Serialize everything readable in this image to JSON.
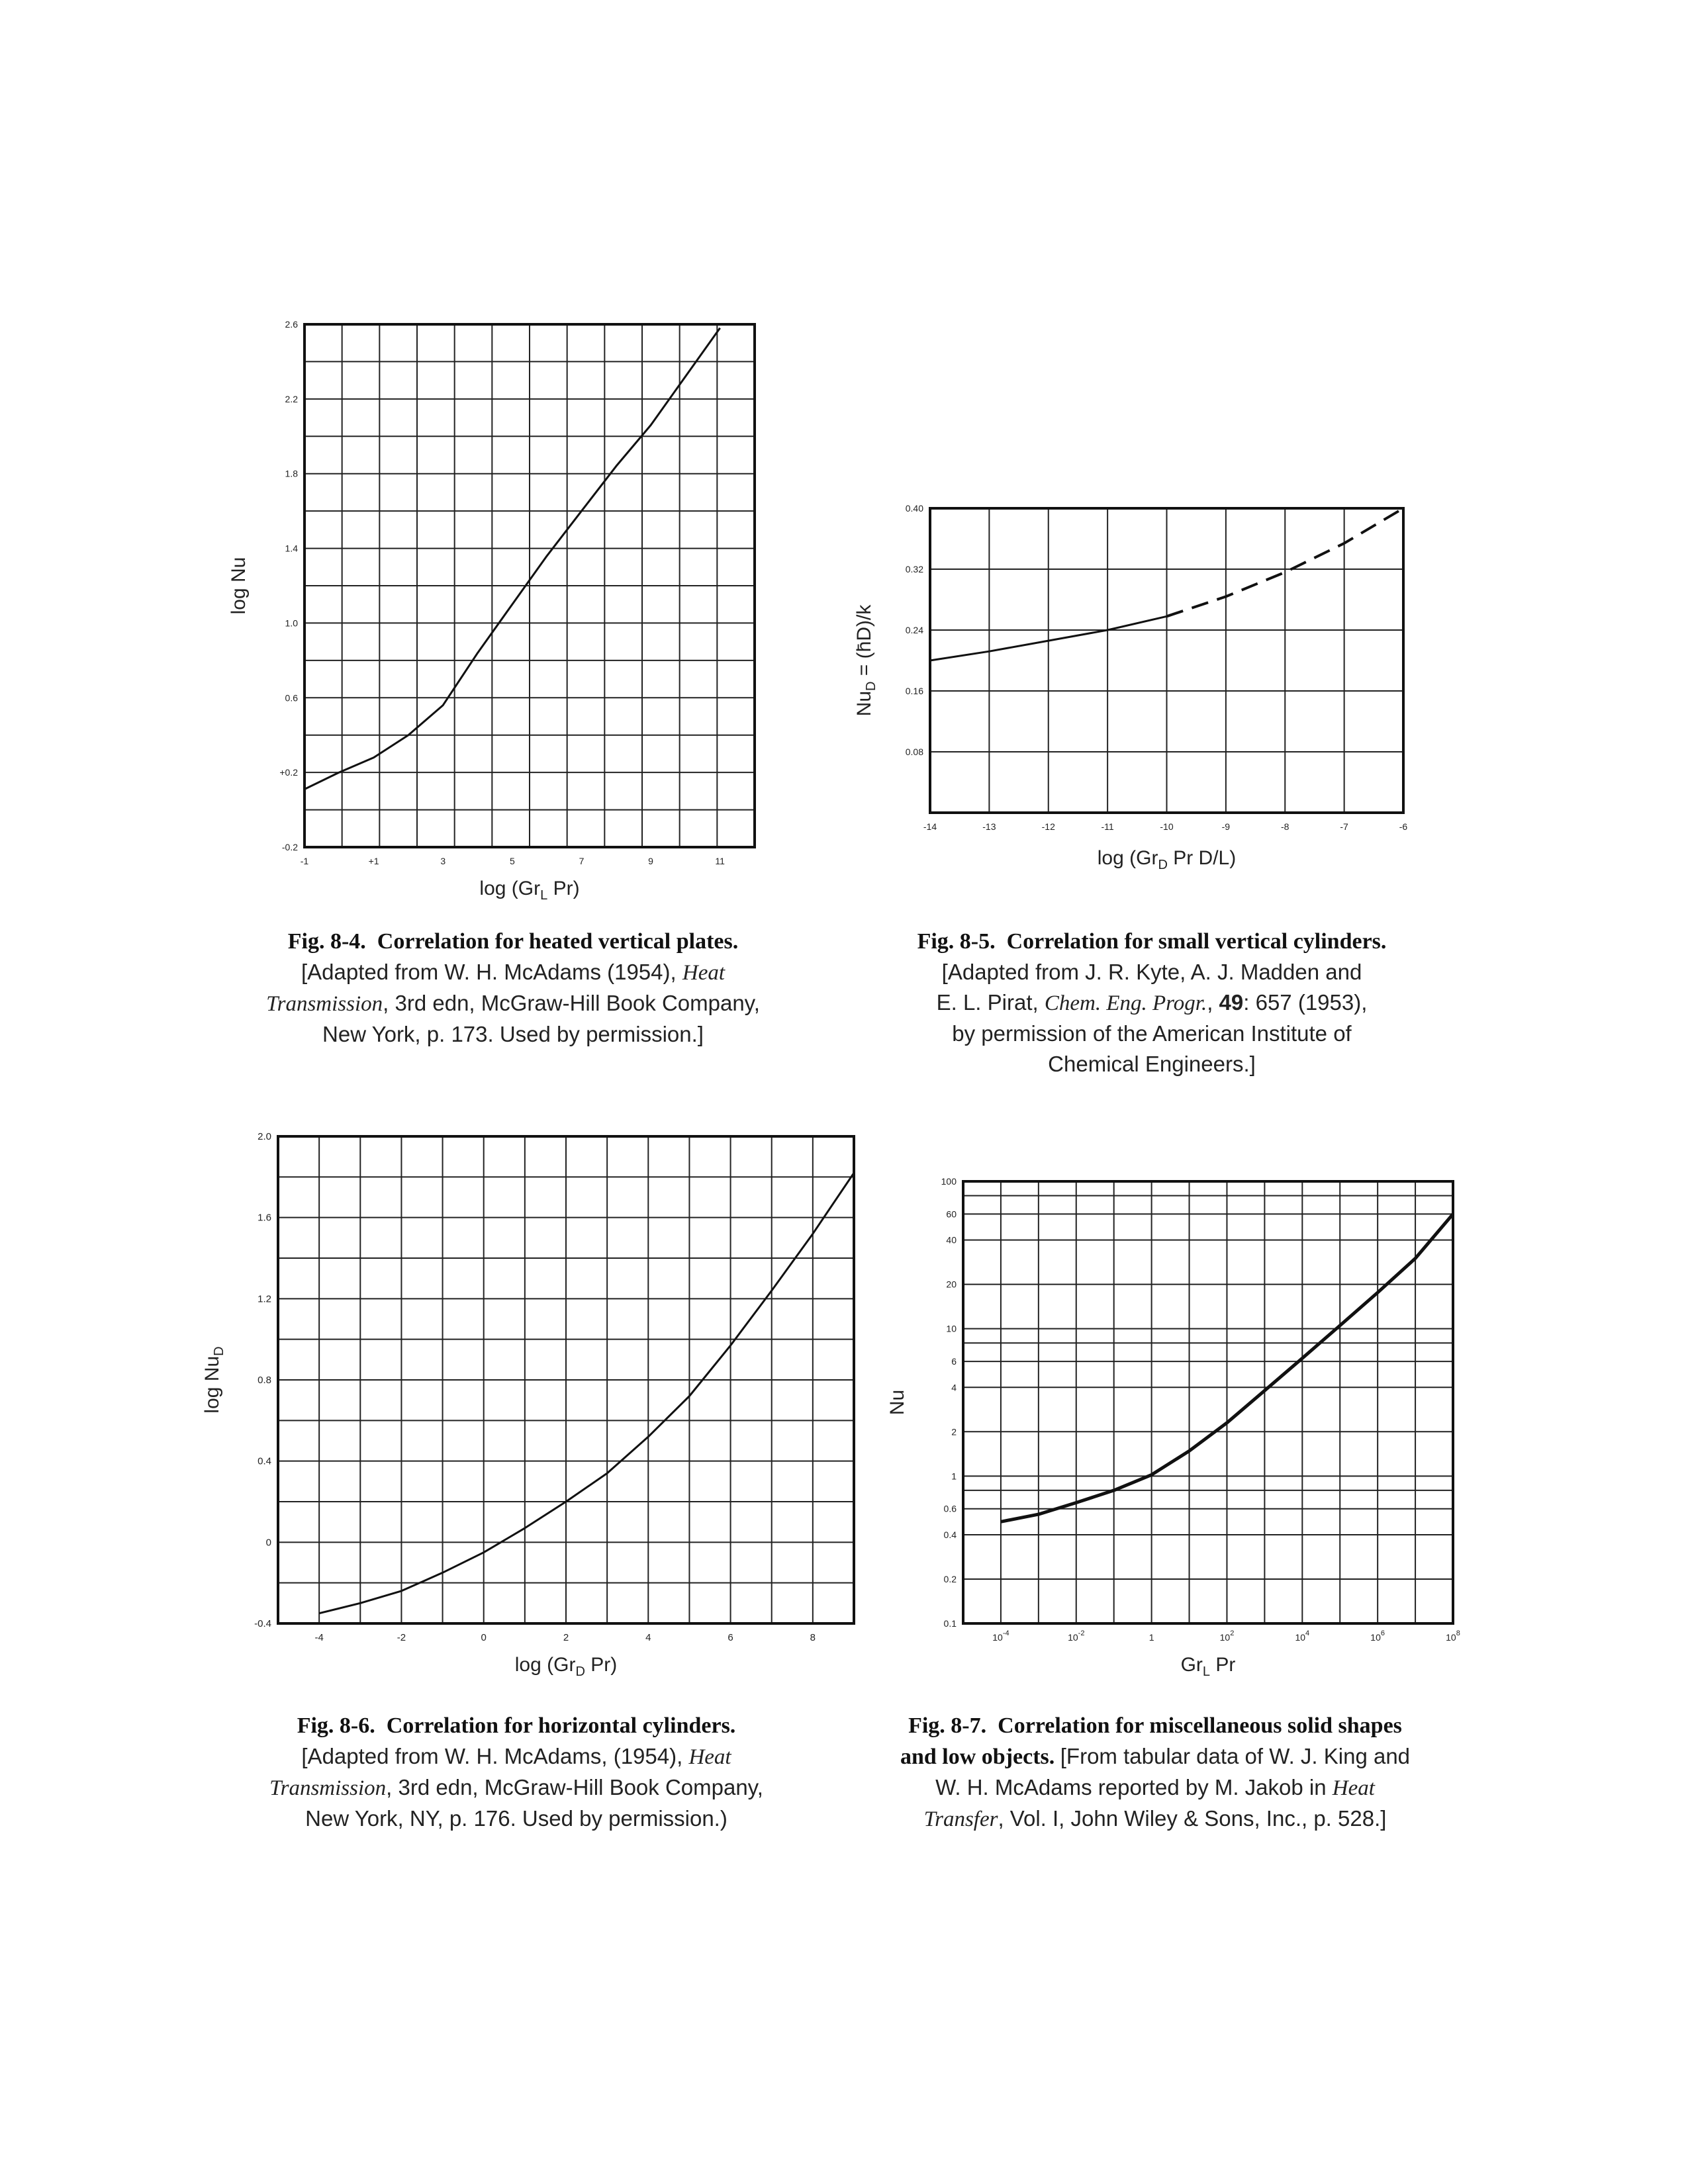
{
  "chart_data": [
    {
      "id": "fig84",
      "type": "line",
      "xlabel_main": "log (Gr",
      "xlabel_sub": "L",
      "xlabel_tail": " Pr)",
      "ylabel_main": "log Nu",
      "ylabel_sub": "",
      "xlim": [
        -1,
        12
      ],
      "ylim": [
        -0.2,
        2.6
      ],
      "x_ticks": [
        {
          "v": -1,
          "label": "-1"
        },
        {
          "v": 1,
          "label": "+1"
        },
        {
          "v": 3,
          "label": "3"
        },
        {
          "v": 5,
          "label": "5"
        },
        {
          "v": 7,
          "label": "7"
        },
        {
          "v": 9,
          "label": "9"
        },
        {
          "v": 11,
          "label": "11"
        }
      ],
      "y_ticks": [
        {
          "v": -0.2,
          "label": "-0.2"
        },
        {
          "v": 0.2,
          "label": "+0.2"
        },
        {
          "v": 0.6,
          "label": "0.6"
        },
        {
          "v": 1.0,
          "label": "1.0"
        },
        {
          "v": 1.4,
          "label": "1.4"
        },
        {
          "v": 1.8,
          "label": "1.8"
        },
        {
          "v": 2.2,
          "label": "2.2"
        },
        {
          "v": 2.6,
          "label": "2.6"
        }
      ],
      "grid": true,
      "series": [
        {
          "style": "solid",
          "points": [
            [
              -1.0,
              0.11
            ],
            [
              0.0,
              0.2
            ],
            [
              1.0,
              0.28
            ],
            [
              2.0,
              0.4
            ],
            [
              3.0,
              0.56
            ],
            [
              4.0,
              0.84
            ],
            [
              5.0,
              1.1
            ],
            [
              6.0,
              1.36
            ],
            [
              7.0,
              1.6
            ],
            [
              8.0,
              1.84
            ],
            [
              9.0,
              2.06
            ],
            [
              10.0,
              2.32
            ],
            [
              11.0,
              2.58
            ]
          ]
        }
      ]
    },
    {
      "id": "fig85",
      "type": "line",
      "xlabel_main": "log (Gr",
      "xlabel_sub": "D",
      "xlabel_tail": " Pr D/L)",
      "ylabel_main": "Nu",
      "ylabel_sub": "D",
      "ylabel_tail": " = (h̄D)/k",
      "xlim": [
        -14,
        -6
      ],
      "ylim": [
        0.0,
        0.4
      ],
      "x_ticks": [
        {
          "v": -14,
          "label": "-14"
        },
        {
          "v": -13,
          "label": "-13"
        },
        {
          "v": -12,
          "label": "-12"
        },
        {
          "v": -11,
          "label": "-11"
        },
        {
          "v": -10,
          "label": "-10"
        },
        {
          "v": -9,
          "label": "-9"
        },
        {
          "v": -8,
          "label": "-8"
        },
        {
          "v": -7,
          "label": "-7"
        },
        {
          "v": -6,
          "label": "-6"
        }
      ],
      "y_ticks": [
        {
          "v": 0.08,
          "label": "0.08"
        },
        {
          "v": 0.16,
          "label": "0.16"
        },
        {
          "v": 0.24,
          "label": "0.24"
        },
        {
          "v": 0.32,
          "label": "0.32"
        },
        {
          "v": 0.4,
          "label": "0.40"
        }
      ],
      "grid": true,
      "series": [
        {
          "style": "solid",
          "points": [
            [
              -14.0,
              0.2
            ],
            [
              -13.0,
              0.212
            ],
            [
              -12.0,
              0.226
            ],
            [
              -11.0,
              0.24
            ],
            [
              -10.0,
              0.258
            ]
          ]
        },
        {
          "style": "dashed",
          "points": [
            [
              -10.0,
              0.258
            ],
            [
              -9.0,
              0.284
            ],
            [
              -8.0,
              0.316
            ],
            [
              -7.0,
              0.354
            ],
            [
              -6.0,
              0.4
            ]
          ]
        }
      ]
    },
    {
      "id": "fig86",
      "type": "line",
      "xlabel_main": "log (Gr",
      "xlabel_sub": "D",
      "xlabel_tail": " Pr)",
      "ylabel_main": "log Nu",
      "ylabel_sub": "D",
      "xlim": [
        -5,
        9
      ],
      "ylim": [
        -0.4,
        2.0
      ],
      "x_ticks": [
        {
          "v": -4,
          "label": "-4"
        },
        {
          "v": -2,
          "label": "-2"
        },
        {
          "v": 0,
          "label": "0"
        },
        {
          "v": 2,
          "label": "2"
        },
        {
          "v": 4,
          "label": "4"
        },
        {
          "v": 6,
          "label": "6"
        },
        {
          "v": 8,
          "label": "8"
        }
      ],
      "y_ticks": [
        {
          "v": -0.4,
          "label": "-0.4"
        },
        {
          "v": 0.0,
          "label": "0"
        },
        {
          "v": 0.4,
          "label": "0.4"
        },
        {
          "v": 0.8,
          "label": "0.8"
        },
        {
          "v": 1.2,
          "label": "1.2"
        },
        {
          "v": 1.6,
          "label": "1.6"
        },
        {
          "v": 2.0,
          "label": "2.0"
        }
      ],
      "grid": true,
      "series": [
        {
          "style": "solid",
          "points": [
            [
              -4.0,
              -0.35
            ],
            [
              -3.0,
              -0.3
            ],
            [
              -2.0,
              -0.24
            ],
            [
              -1.0,
              -0.15
            ],
            [
              0.0,
              -0.05
            ],
            [
              1.0,
              0.07
            ],
            [
              2.0,
              0.2
            ],
            [
              3.0,
              0.34
            ],
            [
              4.0,
              0.52
            ],
            [
              5.0,
              0.72
            ],
            [
              6.0,
              0.97
            ],
            [
              7.0,
              1.24
            ],
            [
              8.0,
              1.52
            ],
            [
              9.0,
              1.82
            ]
          ]
        }
      ]
    },
    {
      "id": "fig87",
      "type": "line",
      "xlabel_main": "Gr",
      "xlabel_sub": "L",
      "xlabel_tail": " Pr",
      "ylabel_main": "Nu",
      "ylabel_sub": "",
      "x_scale": "log",
      "y_scale": "log",
      "xlim": [
        -5,
        8
      ],
      "ylim": [
        0.1,
        100
      ],
      "x_ticks": [
        {
          "v": -4,
          "base": "10",
          "exp": "-4"
        },
        {
          "v": -2,
          "base": "10",
          "exp": "-2"
        },
        {
          "v": 0,
          "base": "1",
          "exp": ""
        },
        {
          "v": 2,
          "base": "10",
          "exp": "2"
        },
        {
          "v": 4,
          "base": "10",
          "exp": "4"
        },
        {
          "v": 6,
          "base": "10",
          "exp": "6"
        },
        {
          "v": 8,
          "base": "10",
          "exp": "8"
        }
      ],
      "y_ticks": [
        {
          "v": 0.1,
          "label": "0.1"
        },
        {
          "v": 0.2,
          "label": "0.2"
        },
        {
          "v": 0.4,
          "label": "0.4"
        },
        {
          "v": 0.6,
          "label": "0.6"
        },
        {
          "v": 1,
          "label": "1"
        },
        {
          "v": 2,
          "label": "2"
        },
        {
          "v": 4,
          "label": "4"
        },
        {
          "v": 6,
          "label": "6"
        },
        {
          "v": 10,
          "label": "10"
        },
        {
          "v": 20,
          "label": "20"
        },
        {
          "v": 40,
          "label": "40"
        },
        {
          "v": 60,
          "label": "60"
        },
        {
          "v": 100,
          "label": "100"
        }
      ],
      "grid": true,
      "series": [
        {
          "style": "solid-bold",
          "points": [
            [
              -4.0,
              0.49
            ],
            [
              -3.0,
              0.55
            ],
            [
              -2.0,
              0.66
            ],
            [
              -1.0,
              0.8
            ],
            [
              0.0,
              1.02
            ],
            [
              1.0,
              1.48
            ],
            [
              2.0,
              2.3
            ],
            [
              3.0,
              3.8
            ],
            [
              4.0,
              6.3
            ],
            [
              5.0,
              10.5
            ],
            [
              6.0,
              17.6
            ],
            [
              7.0,
              30.0
            ],
            [
              8.0,
              60.0
            ]
          ]
        }
      ]
    }
  ],
  "captions": {
    "fig84": {
      "num": "Fig. 8-4.",
      "title": "Correlation for heated vertical plates.",
      "line2": "[Adapted from W. H. McAdams (1954),",
      "line2_it": "Heat",
      "line3_it": "Transmission",
      "line3": ", 3rd edn, McGraw-Hill Book Company,",
      "line4": "New York, p. 173. Used by permission.]"
    },
    "fig85": {
      "num": "Fig. 8-5.",
      "title": "Correlation for small vertical cylinders.",
      "line2": "[Adapted from J. R. Kyte, A. J. Madden and",
      "line3a": "E. L. Pirat,",
      "line3_it": "Chem. Eng. Progr.",
      "line3b": ",",
      "line3_bold": "49",
      "line3c": ": 657 (1953),",
      "line4": "by permission of the American Institute of",
      "line5": "Chemical Engineers.]"
    },
    "fig86": {
      "num": "Fig. 8-6.",
      "title": "Correlation for horizontal cylinders.",
      "line2": "[Adapted from W. H. McAdams, (1954),",
      "line2_it": "Heat",
      "line3_it": "Transmission",
      "line3": ", 3rd edn, McGraw-Hill Book Company,",
      "line4": "New York, NY, p. 176. Used by permission.)"
    },
    "fig87": {
      "num": "Fig. 8-7.",
      "title1": "Correlation for miscellaneous solid shapes",
      "title2": "and low objects.",
      "line2": "[From tabular data of W. J. King and",
      "line3": "W. H. McAdams reported by M. Jakob in",
      "line3_it": "Heat",
      "line4_it": "Transfer",
      "line4": ", Vol. I, John Wiley & Sons, Inc., p. 528.]"
    }
  }
}
